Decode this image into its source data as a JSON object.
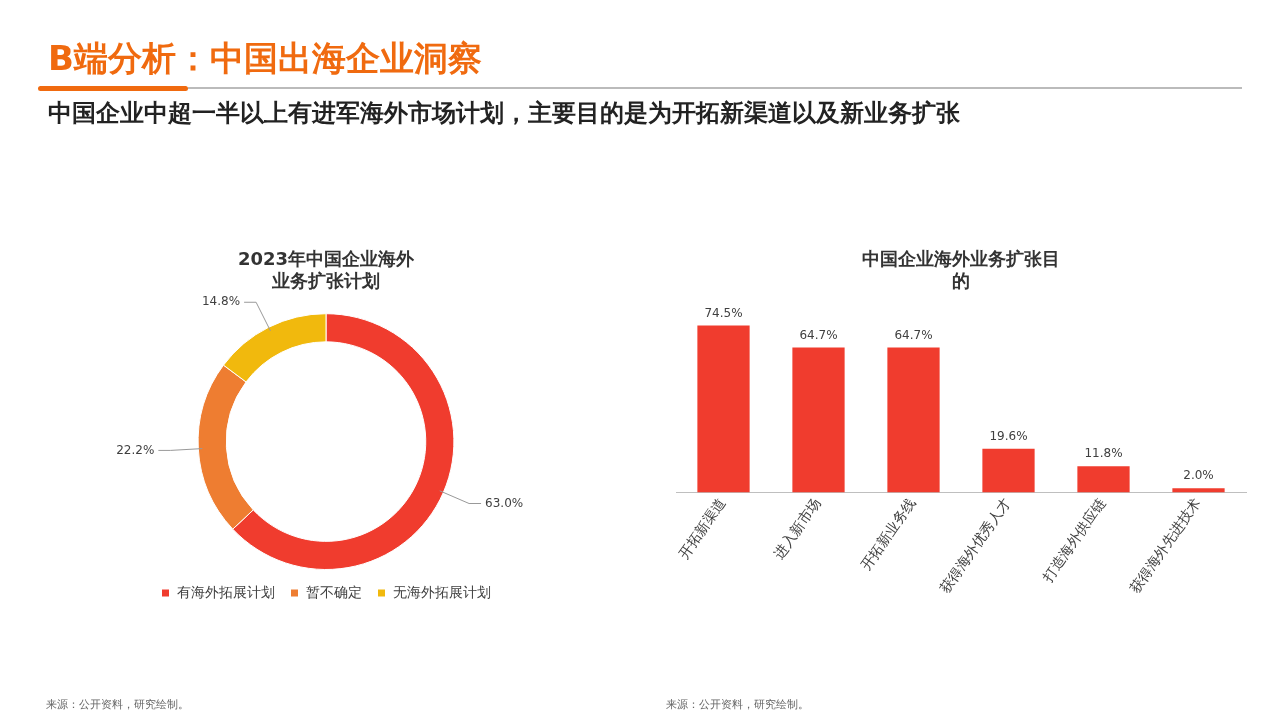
{
  "chart_data": [
    {
      "type": "other",
      "title": "B端分析：中国出海企业洞察",
      "subtitle": "中国企业中超一半以上有进军海外市场计划，主要目的是为开拓新渠道以及新业务扩张",
      "color": "#f06a0f"
    },
    {
      "type": "donut",
      "title": "2023年中国企业海外业务扩张计划",
      "categories": [
        "有海外拓展计划",
        "暂不确定",
        "无海外拓展计划"
      ],
      "values": [
        63.0,
        22.2,
        14.8
      ],
      "value_labels": [
        "63.0%",
        "22.2%",
        "14.8%"
      ],
      "colors": [
        "#f03c2e",
        "#ee7d31",
        "#f1b90d"
      ],
      "legend": "bottom",
      "annotations": [
        "来源：公开资料，研究绘制。"
      ]
    },
    {
      "type": "bar",
      "title": "中国企业海外业务扩张目的",
      "categories": [
        "开拓新渠道",
        "进入新市场",
        "开拓新业务线",
        "获得海外优秀人才",
        "打造海外供应链",
        "获得海外先进技术"
      ],
      "values": [
        74.5,
        64.7,
        64.7,
        19.6,
        11.8,
        2.0
      ],
      "value_labels": [
        "74.5%",
        "64.7%",
        "64.7%",
        "19.6%",
        "11.8%",
        "2.0%"
      ],
      "color": "#f03c2e",
      "tick_labels": "x",
      "annotations": [
        "来源：公开资料，研究绘制。"
      ]
    }
  ]
}
